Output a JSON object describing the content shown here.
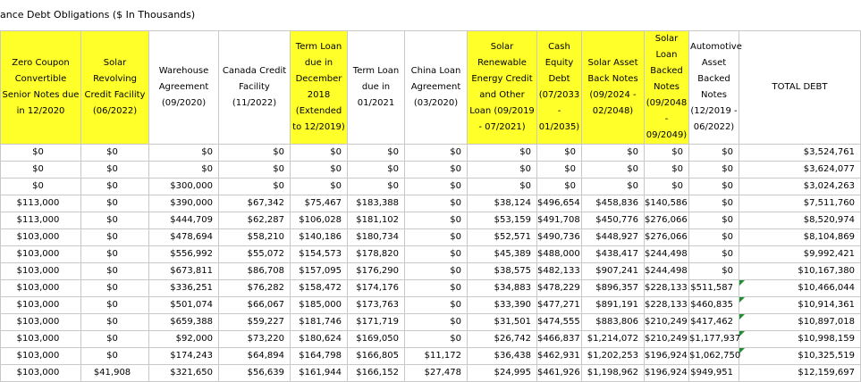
{
  "title": "ance Debt Obligations ($ In Thousands)",
  "columns": [
    "Zero Coupon Convertible Senior Notes due in 12/2020",
    "Solar Revolving Credit Facility (06/2022)",
    "Warehouse Agreement (09/2020)",
    "Canada Credit Facility (11/2022)",
    "Term Loan due in December 2018 (Extended to 12/2019)",
    "Term Loan due in 01/2021",
    "China Loan Agreement (03/2020)",
    "Solar Renewable Energy Credit and Other Loan (09/2019 - 07/2021)",
    "Cash Equity Debt (07/2033 - 01/2035)",
    "Solar Asset Back Notes (09/2024 - 02/2048)",
    "Solar Loan Backed Notes (09/2048 - 09/2049)",
    "Automotive Asset Backed Notes (12/2019 - 06/2022)",
    "TOTAL DEBT"
  ],
  "rows": [
    [
      "$0",
      "$0",
      "$0",
      "$0",
      "$0",
      "$0",
      "$0",
      "$0",
      "$0",
      "$0",
      "$0",
      "$0",
      "$3,524,761"
    ],
    [
      "$0",
      "$0",
      "$0",
      "$0",
      "$0",
      "$0",
      "$0",
      "$0",
      "$0",
      "$0",
      "$0",
      "$0",
      "$3,624,077"
    ],
    [
      "$0",
      "$0",
      "$300,000",
      "$0",
      "$0",
      "$0",
      "$0",
      "$0",
      "$0",
      "$0",
      "$0",
      "$0",
      "$3,024,263"
    ],
    [
      "$113,000",
      "$0",
      "$390,000",
      "$67,342",
      "$75,467",
      "$183,388",
      "$0",
      "$38,124",
      "$496,654",
      "$458,836",
      "$140,586",
      "$0",
      "$7,511,760"
    ],
    [
      "$113,000",
      "$0",
      "$444,709",
      "$62,287",
      "$106,028",
      "$181,102",
      "$0",
      "$53,159",
      "$491,708",
      "$450,776",
      "$276,066",
      "$0",
      "$8,520,974"
    ],
    [
      "$103,000",
      "$0",
      "$478,694",
      "$58,210",
      "$140,186",
      "$180,734",
      "$0",
      "$52,571",
      "$490,736",
      "$448,927",
      "$276,066",
      "$0",
      "$8,104,869"
    ],
    [
      "$103,000",
      "$0",
      "$556,992",
      "$55,072",
      "$154,573",
      "$178,820",
      "$0",
      "$45,389",
      "$488,000",
      "$438,417",
      "$244,498",
      "$0",
      "$9,992,421"
    ],
    [
      "$103,000",
      "$0",
      "$673,811",
      "$86,708",
      "$157,095",
      "$176,290",
      "$0",
      "$38,575",
      "$482,133",
      "$907,241",
      "$244,498",
      "$0",
      "$10,167,380"
    ],
    [
      "$103,000",
      "$0",
      "$336,251",
      "$76,282",
      "$158,472",
      "$174,176",
      "$0",
      "$34,883",
      "$478,229",
      "$896,357",
      "$228,133",
      "$511,587",
      "$10,466,044"
    ],
    [
      "$103,000",
      "$0",
      "$501,074",
      "$66,067",
      "$185,000",
      "$173,763",
      "$0",
      "$33,390",
      "$477,271",
      "$891,191",
      "$228,133",
      "$460,835",
      "$10,914,361"
    ],
    [
      "$103,000",
      "$0",
      "$659,388",
      "$59,227",
      "$181,746",
      "$171,719",
      "$0",
      "$31,501",
      "$474,555",
      "$883,806",
      "$210,249",
      "$417,462",
      "$10,897,018"
    ],
    [
      "$103,000",
      "$0",
      "$92,000",
      "$73,220",
      "$180,624",
      "$169,050",
      "$0",
      "$26,742",
      "$466,837",
      "$1,214,072",
      "$210,249",
      "$1,177,937",
      "$10,998,159"
    ],
    [
      "$103,000",
      "$0",
      "$174,243",
      "$64,894",
      "$164,798",
      "$166,805",
      "$11,172",
      "$36,438",
      "$462,931",
      "$1,202,253",
      "$196,924",
      "$1,062,750",
      "$10,325,519"
    ],
    [
      "$103,000",
      "$41,908",
      "$321,650",
      "$56,639",
      "$161,944",
      "$166,152",
      "$27,478",
      "$24,995",
      "$461,926",
      "$1,198,962",
      "$196,924",
      "$949,951",
      "$12,159,697"
    ]
  ],
  "colors": {
    "highlight": "#ffff2a",
    "grid": "#c8c8c8",
    "marker": "#1e8f2e"
  }
}
